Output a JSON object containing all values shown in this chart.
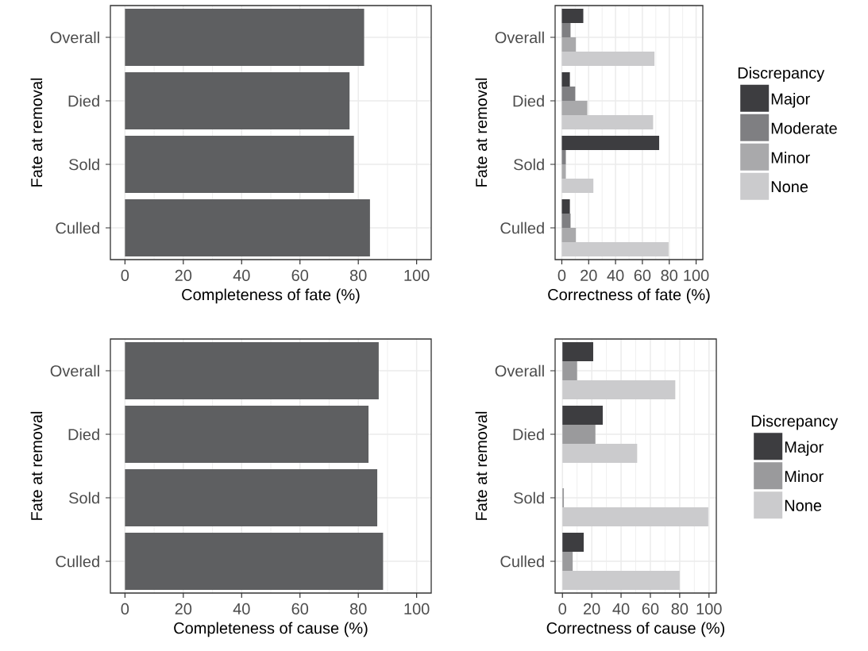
{
  "chart_data": [
    {
      "type": "bar",
      "orientation": "horizontal",
      "categories": [
        "Overall",
        "Died",
        "Sold",
        "Culled"
      ],
      "values": [
        82,
        77,
        78.5,
        84
      ],
      "color": "#5e5f61",
      "xlabel": "Completeness of fate (%)",
      "ylabel": "Fate at removal",
      "xlim": [
        -5,
        105
      ],
      "xticks": [
        0,
        20,
        40,
        60,
        80,
        100
      ],
      "grid": true
    },
    {
      "type": "bar",
      "orientation": "horizontal",
      "categories": [
        "Overall",
        "Died",
        "Sold",
        "Culled"
      ],
      "xlabel": "Correctness of fate (%)",
      "ylabel": "Fate at removal",
      "xlim": [
        -5,
        105
      ],
      "xticks": [
        0,
        20,
        40,
        60,
        80,
        100
      ],
      "grid": true,
      "legend": "right",
      "legend_title": "Discrepancy",
      "series": [
        {
          "name": "Major",
          "color": "#3d3d40",
          "values": [
            16,
            6,
            72.5,
            6
          ]
        },
        {
          "name": "Moderate",
          "color": "#7f7f82",
          "values": [
            6.5,
            10,
            3,
            6.5
          ]
        },
        {
          "name": "Minor",
          "color": "#a9a9ab",
          "values": [
            10.5,
            19,
            3,
            10.5
          ]
        },
        {
          "name": "None",
          "color": "#cbcbcd",
          "values": [
            69,
            68,
            23.5,
            79.5
          ]
        }
      ]
    },
    {
      "type": "bar",
      "orientation": "horizontal",
      "categories": [
        "Overall",
        "Died",
        "Sold",
        "Culled"
      ],
      "values": [
        87,
        83.5,
        86.5,
        88.5
      ],
      "color": "#5e5f61",
      "xlabel": "Completeness of cause (%)",
      "ylabel": "Fate at removal",
      "xlim": [
        -5,
        105
      ],
      "xticks": [
        0,
        20,
        40,
        60,
        80,
        100
      ],
      "grid": true
    },
    {
      "type": "bar",
      "orientation": "horizontal",
      "categories": [
        "Overall",
        "Died",
        "Sold",
        "Culled"
      ],
      "xlabel": "Correctness of cause (%)",
      "ylabel": "Fate at removal",
      "xlim": [
        -5,
        105
      ],
      "xticks": [
        0,
        20,
        40,
        60,
        80,
        100
      ],
      "grid": true,
      "legend": "right",
      "legend_title": "Discrepancy",
      "series": [
        {
          "name": "Major",
          "color": "#3d3d40",
          "values": [
            21,
            27.5,
            0,
            14.5
          ]
        },
        {
          "name": "Minor",
          "color": "#9a9a9c",
          "values": [
            10,
            22.5,
            1,
            7
          ]
        },
        {
          "name": "None",
          "color": "#cbcbcd",
          "values": [
            77,
            51,
            99.5,
            80
          ]
        }
      ]
    }
  ]
}
